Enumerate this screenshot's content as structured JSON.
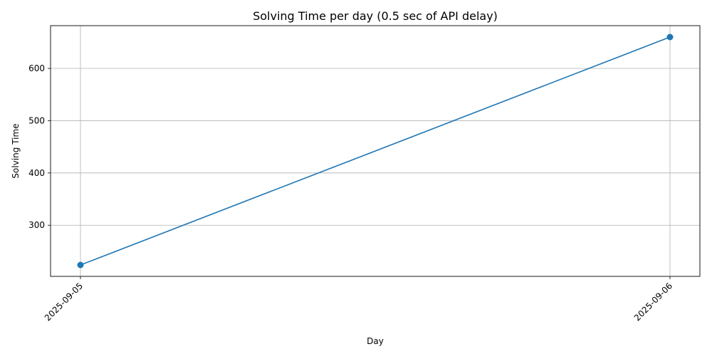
{
  "chart_data": {
    "type": "line",
    "title": "Solving Time per day (0.5 sec of API delay)",
    "xlabel": "Day",
    "ylabel": "Solving Time",
    "x": [
      "2025-09-05",
      "2025-09-06"
    ],
    "series": [
      {
        "values": [
          224,
          660
        ],
        "color": "#1f77b4",
        "marker": "circle"
      }
    ],
    "yticks": [
      300,
      400,
      500,
      600
    ],
    "ylim": [
      202.2,
      681.8
    ],
    "grid": true
  }
}
